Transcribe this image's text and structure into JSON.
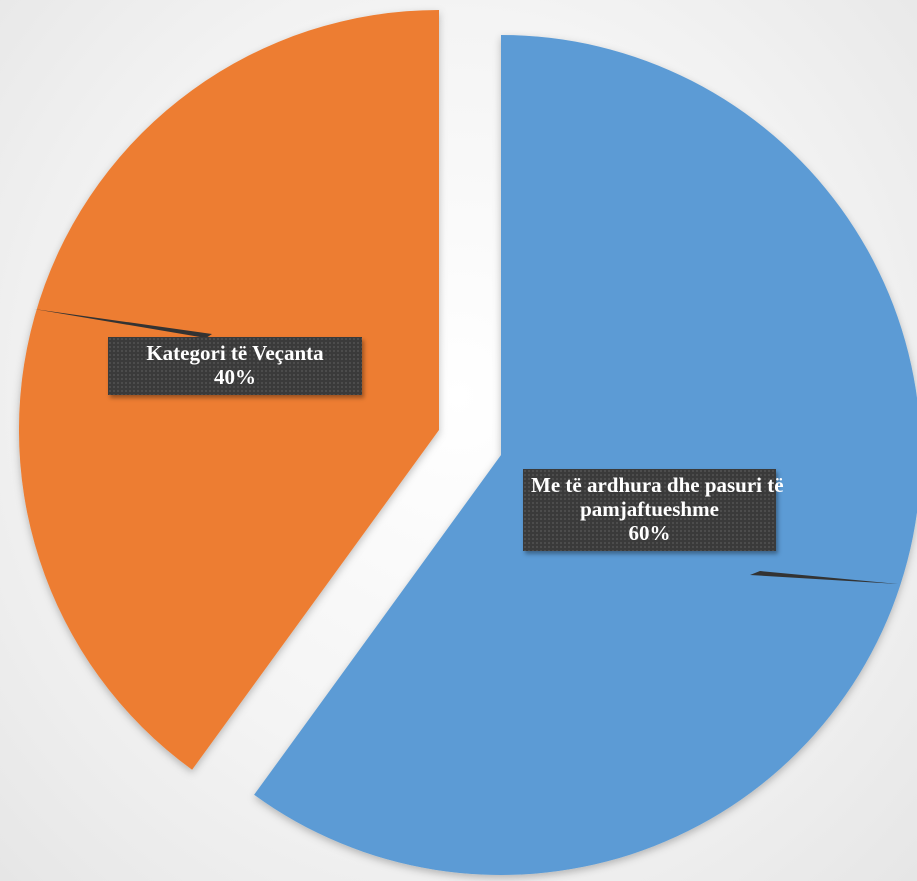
{
  "chart_data": {
    "type": "pie",
    "exploded": true,
    "slices": [
      {
        "name": "Me të ardhura dhe pasuri të pamjaftueshme",
        "label_lines": [
          "Me të ardhura dhe pasuri të",
          "pamjaftueshme"
        ],
        "value": 60,
        "percent_label": "60%",
        "color": "#5b9bd5"
      },
      {
        "name": "Kategori të Veçanta",
        "label_lines": [
          "Kategori të Veçanta"
        ],
        "value": 40,
        "percent_label": "40%",
        "color": "#ed7d31"
      }
    ],
    "colors": {
      "label_background": "#3a3a3a",
      "label_text": "#ffffff",
      "leader_line": "#333333"
    }
  }
}
